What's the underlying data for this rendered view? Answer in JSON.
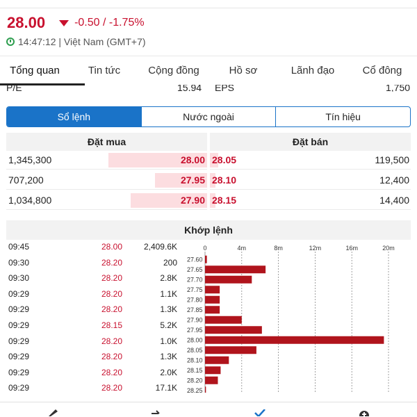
{
  "quote": {
    "price": "28.00",
    "change": "-0.50 / -1.75%",
    "time": "14:47:12 | Việt Nam (GMT+7)",
    "color_down": "#c8102e",
    "clock_icon": "clock-icon"
  },
  "tabs": [
    {
      "label": "Tổng quan",
      "active": true
    },
    {
      "label": "Tin tức"
    },
    {
      "label": "Cộng đồng"
    },
    {
      "label": "Hồ sơ"
    },
    {
      "label": "Lãnh đạo"
    },
    {
      "label": "Cổ đông"
    }
  ],
  "pe_row": {
    "pe_label": "P/E",
    "pe_value": "15.94",
    "eps_label": "EPS",
    "eps_value": "1,750"
  },
  "segments": [
    {
      "label": "Sổ lệnh",
      "active": true
    },
    {
      "label": "Nước ngoài"
    },
    {
      "label": "Tín hiệu"
    }
  ],
  "order_book": {
    "buy_header": "Đặt mua",
    "sell_header": "Đặt bán",
    "rows": [
      {
        "buy_vol": "1,345,300",
        "buy_price": "28.00",
        "buy_fill": 0.49,
        "sell_price": "28.05",
        "sell_vol": "119,500",
        "sell_fill": 0.04
      },
      {
        "buy_vol": "707,200",
        "buy_price": "27.95",
        "buy_fill": 0.26,
        "sell_price": "28.10",
        "sell_vol": "12,400",
        "sell_fill": 0.005
      },
      {
        "buy_vol": "1,034,800",
        "buy_price": "27.90",
        "buy_fill": 0.38,
        "sell_price": "28.15",
        "sell_vol": "14,400",
        "sell_fill": 0.005
      }
    ]
  },
  "matched": {
    "header": "Khớp lệnh",
    "trades": [
      {
        "time": "09:45",
        "price": "28.00",
        "vol": "2,409.6K"
      },
      {
        "time": "09:30",
        "price": "28.20",
        "vol": "200"
      },
      {
        "time": "09:30",
        "price": "28.20",
        "vol": "2.8K"
      },
      {
        "time": "09:29",
        "price": "28.20",
        "vol": "1.1K"
      },
      {
        "time": "09:29",
        "price": "28.20",
        "vol": "1.3K"
      },
      {
        "time": "09:29",
        "price": "28.15",
        "vol": "5.2K"
      },
      {
        "time": "09:29",
        "price": "28.20",
        "vol": "1.0K"
      },
      {
        "time": "09:29",
        "price": "28.20",
        "vol": "1.3K"
      },
      {
        "time": "09:29",
        "price": "28.20",
        "vol": "2.0K"
      },
      {
        "time": "09:29",
        "price": "28.20",
        "vol": "17.1K"
      }
    ]
  },
  "chart_data": {
    "type": "bar",
    "orientation": "horizontal",
    "categories": [
      "27.60",
      "27.65",
      "27.70",
      "27.75",
      "27.80",
      "27.85",
      "27.90",
      "27.95",
      "28.00",
      "28.05",
      "28.10",
      "28.15",
      "28.20",
      "28.25"
    ],
    "values": [
      0.2,
      6.6,
      5.1,
      1.6,
      1.6,
      1.6,
      4.0,
      6.2,
      19.5,
      5.6,
      2.6,
      1.7,
      1.4,
      0.1
    ],
    "xticks": [
      "0",
      "4m",
      "8m",
      "12m",
      "16m",
      "20m"
    ],
    "xlim": [
      0,
      20
    ],
    "bar_color": "#b0141c",
    "grid": true
  }
}
